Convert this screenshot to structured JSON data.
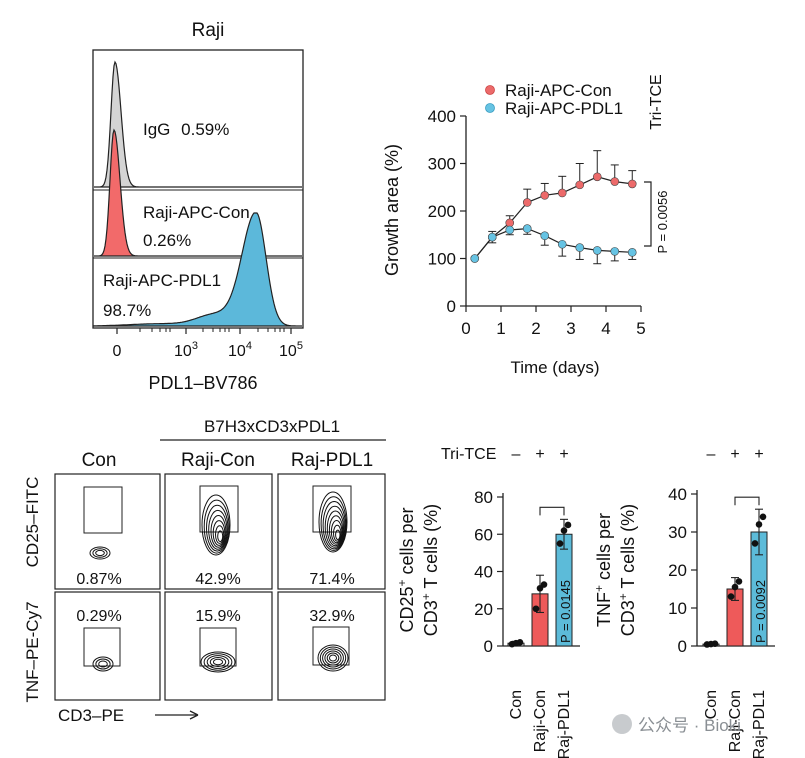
{
  "chart_data": [
    {
      "type": "histogram-overlay",
      "title": "Raji",
      "xlabel": "PDL1–BV786",
      "x_ticks": [
        "0",
        "10",
        "10",
        "10"
      ],
      "x_tick_exponents": [
        "",
        "3",
        "4",
        "5"
      ],
      "tracks": [
        {
          "name": "IgG",
          "percent": "0.59%",
          "color": "#d4d4d4"
        },
        {
          "name": "Raji-APC-Con",
          "percent": "0.26%",
          "color": "#f26a6a"
        },
        {
          "name": "Raji-APC-PDL1",
          "percent": "98.7%",
          "color": "#5cb8da"
        }
      ]
    },
    {
      "type": "line",
      "xlabel": "Time (days)",
      "ylabel": "Growth area (%)",
      "xlim": [
        0,
        5
      ],
      "ylim": [
        0,
        400
      ],
      "x_ticks": [
        0,
        1,
        2,
        3,
        4,
        5
      ],
      "y_ticks": [
        0,
        100,
        200,
        300,
        400
      ],
      "side_label": "Tri-TCE",
      "annotation": "P = 0.0056",
      "x": [
        0.25,
        0.75,
        1.25,
        1.75,
        2.25,
        2.75,
        3.25,
        3.75,
        4.25,
        4.75
      ],
      "series": [
        {
          "name": "Raji-APC-Con",
          "color": "#ec6a6a",
          "values": [
            100,
            145,
            175,
            218,
            233,
            238,
            255,
            272,
            262,
            257
          ],
          "errors": [
            0,
            12,
            15,
            28,
            25,
            35,
            45,
            55,
            35,
            28
          ]
        },
        {
          "name": "Raji-APC-PDL1",
          "color": "#66c3e3",
          "values": [
            100,
            145,
            160,
            163,
            148,
            130,
            123,
            117,
            115,
            113
          ],
          "errors": [
            0,
            12,
            10,
            12,
            20,
            25,
            25,
            28,
            20,
            15
          ]
        }
      ]
    },
    {
      "type": "flow-contour-grid",
      "header_group": "B7H3xCD3xPDL1",
      "columns": [
        "Con",
        "Raji-Con",
        "Raj-PDL1"
      ],
      "y_labels": [
        "CD25–FITC",
        "TNF–PE-Cy7"
      ],
      "xlabel": "CD3–PE",
      "rows": [
        {
          "marker": "CD25",
          "percents": [
            "0.87%",
            "42.9%",
            "71.4%"
          ]
        },
        {
          "marker": "TNF",
          "percents": [
            "0.29%",
            "15.9%",
            "32.9%"
          ]
        }
      ]
    },
    {
      "type": "bar",
      "ylabel_line1": "CD25",
      "ylabel_sup": "+",
      "ylabel_rest": " cells per",
      "ylabel_line2": "CD3",
      "ylabel_line2_sup": "+",
      "ylabel_line2_rest": " T cells (%)",
      "row_label": "Tri-TCE",
      "signs": [
        "–",
        "+",
        "+"
      ],
      "categories": [
        "Con",
        "Raji-Con",
        "Raj-PDL1"
      ],
      "values": [
        1.5,
        28,
        60
      ],
      "errors": [
        1,
        10,
        8
      ],
      "points": [
        [
          1,
          2,
          1.5
        ],
        [
          20,
          33,
          31
        ],
        [
          55,
          65,
          62
        ]
      ],
      "colors": [
        "#cccccc",
        "#ee5a5a",
        "#5cbbd9"
      ],
      "ylim": [
        0,
        80
      ],
      "y_ticks": [
        0,
        20,
        40,
        60,
        80
      ],
      "p_value": "P = 0.0145"
    },
    {
      "type": "bar",
      "ylabel_line1": "TNF",
      "ylabel_sup": "+",
      "ylabel_rest": " cells per",
      "ylabel_line2": "CD3",
      "ylabel_line2_sup": "+",
      "ylabel_line2_rest": " T cells (%)",
      "signs": [
        "–",
        "+",
        "+"
      ],
      "categories": [
        "Con",
        "Raji-Con",
        "Raj-PDL1"
      ],
      "values": [
        0.5,
        15,
        30
      ],
      "errors": [
        0.3,
        3,
        6
      ],
      "points": [
        [
          0.4,
          0.6,
          0.5
        ],
        [
          13,
          17,
          15.5
        ],
        [
          27,
          34,
          32
        ]
      ],
      "colors": [
        "#cccccc",
        "#ee5a5a",
        "#5cbbd9"
      ],
      "ylim": [
        0,
        40
      ],
      "y_ticks": [
        0,
        10,
        20,
        30,
        40
      ],
      "p_value": "P = 0.0092"
    }
  ],
  "watermark": "公众号 · Bioki"
}
